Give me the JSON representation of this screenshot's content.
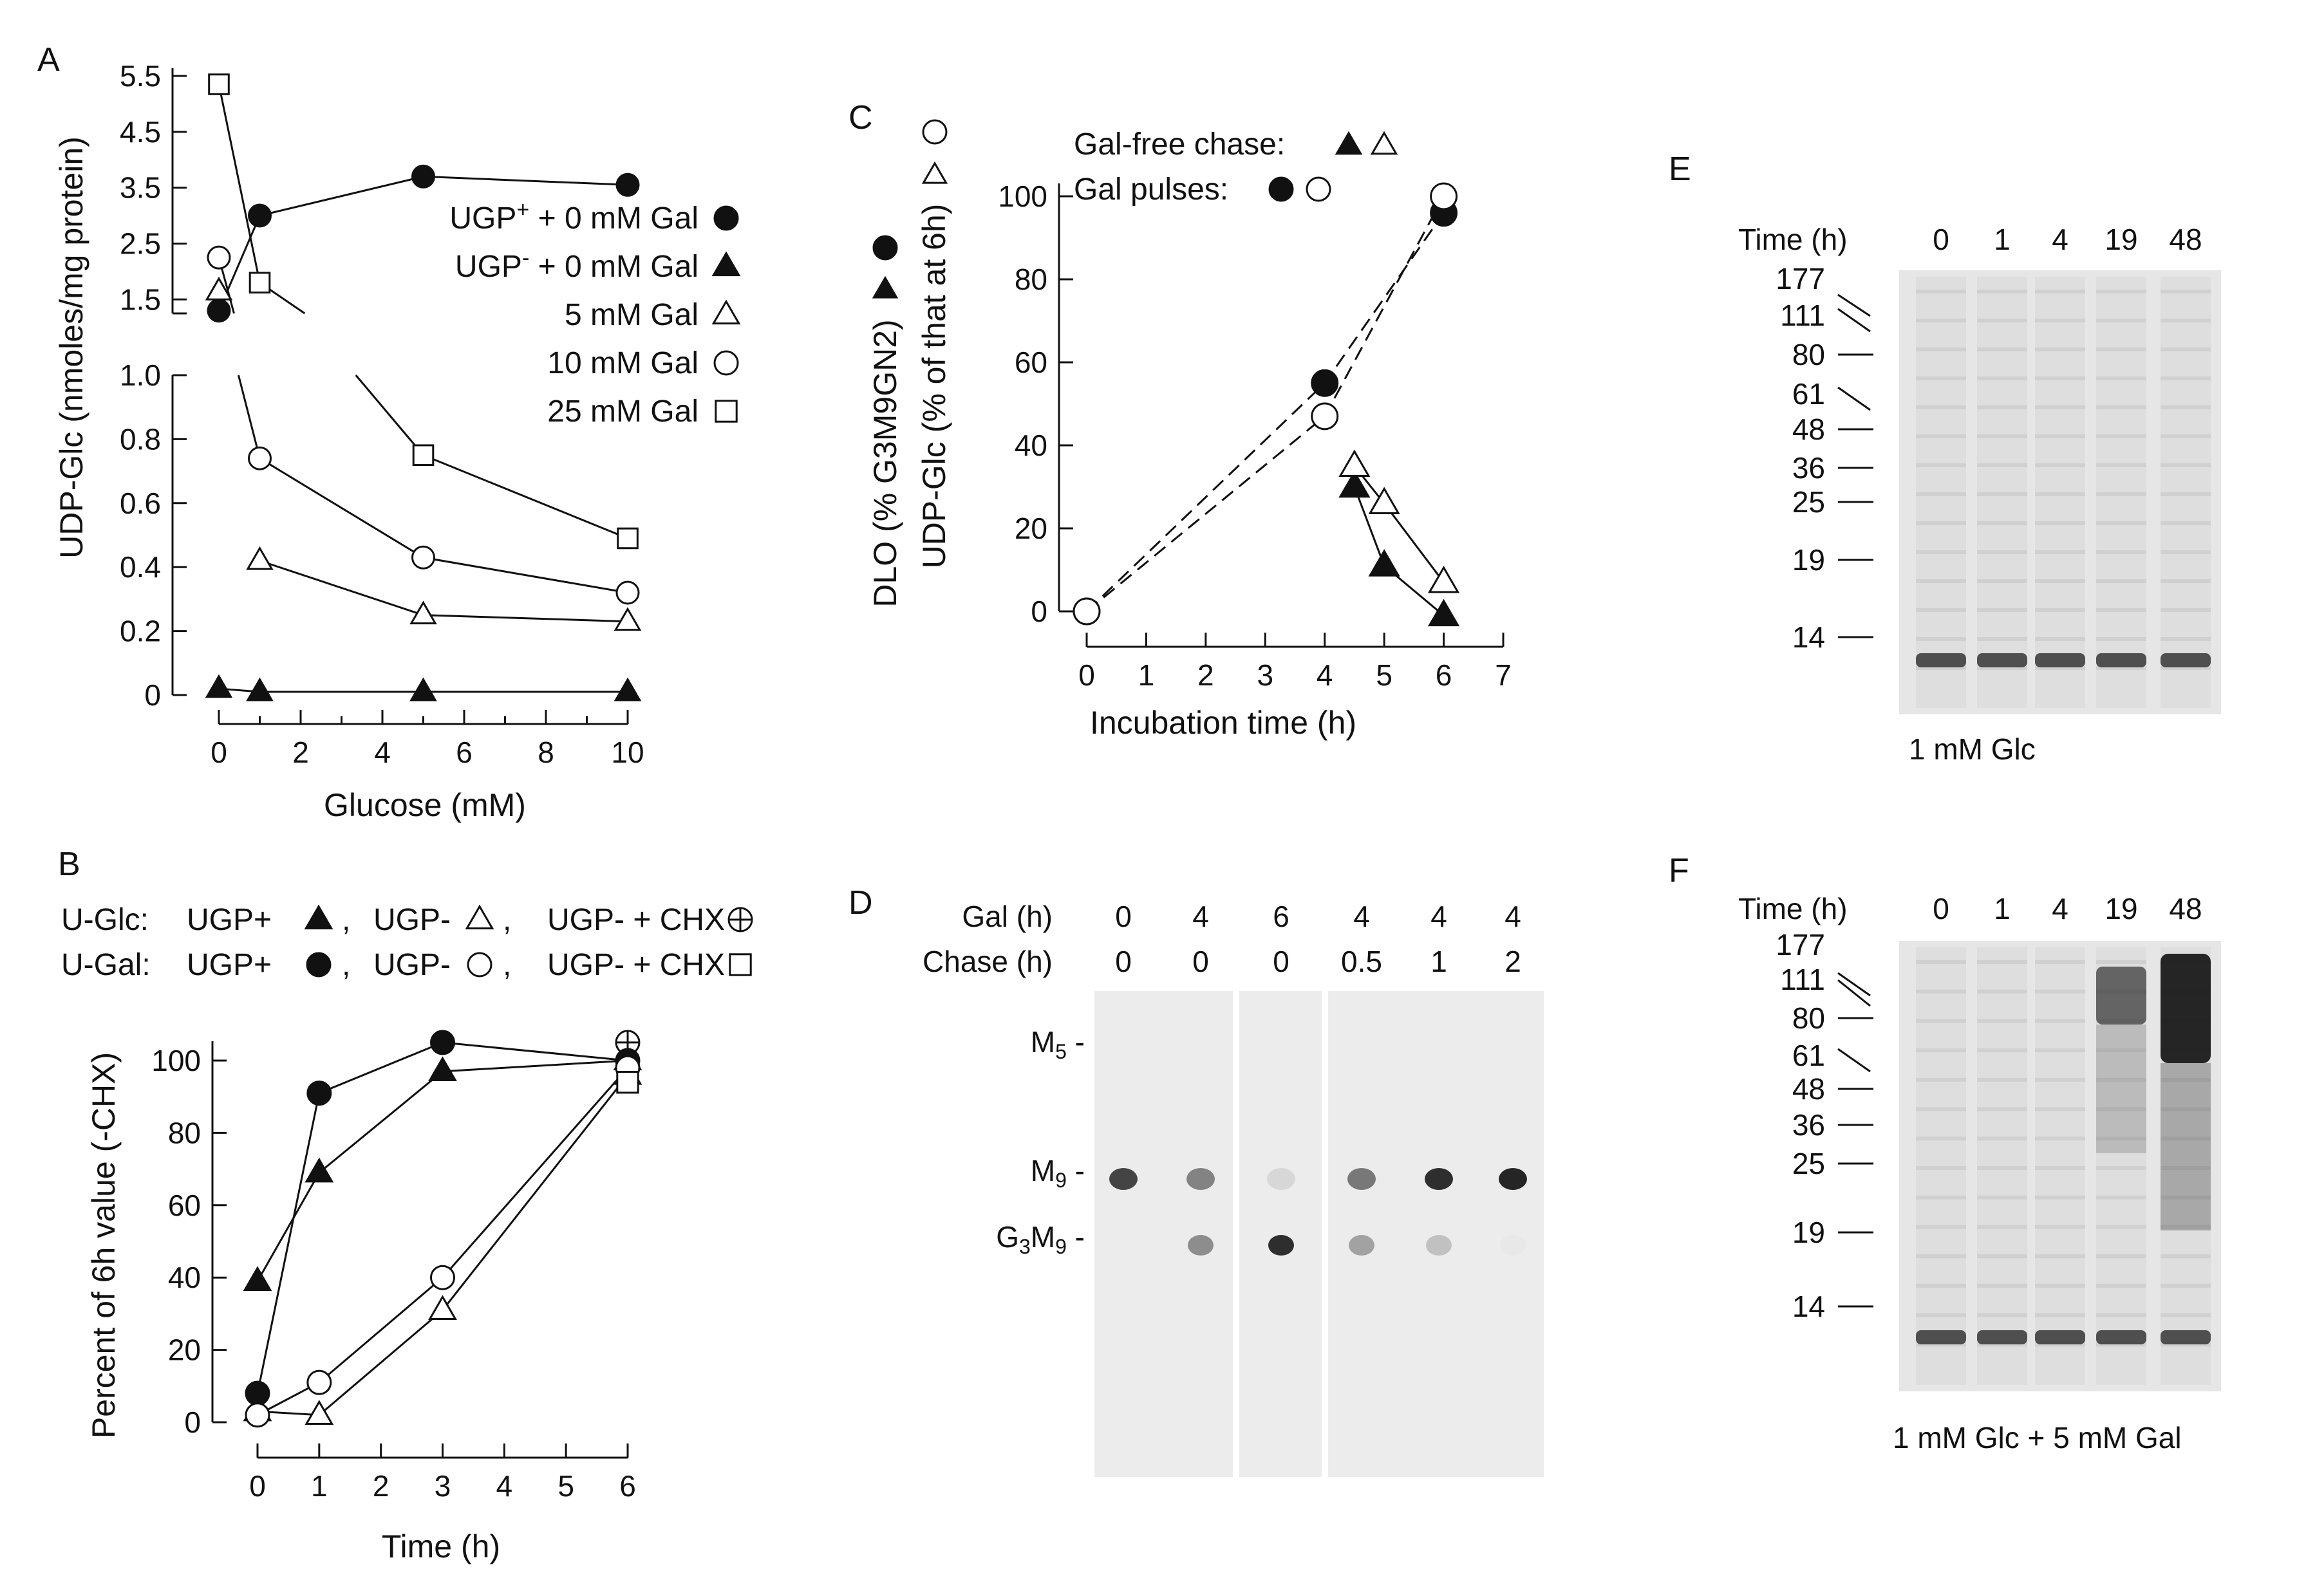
{
  "panels": {
    "A": {
      "letter": "A",
      "chart_data": {
        "type": "line",
        "title": "",
        "xlabel": "Glucose (mM)",
        "ylabel": "UDP-Glc (nmoles/mg protein)",
        "xlim": [
          0,
          10
        ],
        "ylim_lower": [
          0,
          1.0
        ],
        "ylim_upper": [
          1.25,
          5.5
        ],
        "x_ticks": [
          "0",
          "2",
          "4",
          "6",
          "8",
          "10"
        ],
        "y_ticks_lower": [
          "0",
          "0.2",
          "0.4",
          "0.6",
          "0.8",
          "1.0"
        ],
        "y_ticks_upper": [
          "1.5",
          "2.5",
          "3.5",
          "4.5",
          "5.5"
        ],
        "grid": false,
        "legend_position": "right",
        "series": [
          {
            "name": "UGP+ + 0 mM Gal",
            "label_main": "UGP",
            "label_sup": "+",
            "label_rest": " + 0 mM Gal",
            "marker": "filled-circle",
            "x": [
              0,
              1,
              5,
              10
            ],
            "y": [
              1.3,
              3.0,
              3.7,
              3.55
            ]
          },
          {
            "name": "UGP- + 0 mM Gal",
            "label_main": "UGP",
            "label_sup": "-",
            "label_rest": "  + 0 mM Gal",
            "marker": "filled-triangle",
            "x": [
              0,
              1,
              5,
              10
            ],
            "y": [
              0.02,
              0.01,
              0.01,
              0.01
            ]
          },
          {
            "name": "5 mM Gal",
            "label_main": "5 mM Gal",
            "label_sup": "",
            "label_rest": "",
            "marker": "open-triangle",
            "x": [
              0,
              1,
              5,
              10
            ],
            "y": [
              1.65,
              0.42,
              0.25,
              0.23
            ]
          },
          {
            "name": "10 mM Gal",
            "label_main": "10 mM Gal",
            "label_sup": "",
            "label_rest": "",
            "marker": "open-circle",
            "x": [
              0,
              1,
              5,
              10
            ],
            "y": [
              2.25,
              0.74,
              0.43,
              0.32
            ]
          },
          {
            "name": "25 mM Gal",
            "label_main": "25 mM Gal",
            "label_sup": "",
            "label_rest": "",
            "marker": "open-square",
            "x": [
              0,
              1,
              5,
              10
            ],
            "y": [
              5.35,
              1.8,
              0.75,
              0.49
            ]
          }
        ]
      }
    },
    "B": {
      "letter": "B",
      "legend_line1": {
        "prefix": "U-Glc: ",
        "items": [
          "UGP+",
          "UGP-",
          "UGP- + CHX"
        ]
      },
      "legend_line2": {
        "prefix": "U-Gal: ",
        "items": [
          "UGP+",
          "UGP-",
          "UGP- + CHX"
        ]
      },
      "chart_data": {
        "type": "line",
        "title": "",
        "xlabel": "Time (h)",
        "ylabel": "Percent of 6h value (-CHX)",
        "xlim": [
          0,
          6
        ],
        "ylim": [
          0,
          100
        ],
        "x_ticks": [
          "0",
          "1",
          "2",
          "3",
          "4",
          "5",
          "6"
        ],
        "y_ticks": [
          "0",
          "20",
          "40",
          "60",
          "80",
          "100"
        ],
        "grid": false,
        "series": [
          {
            "name": "U-Glc: UGP+",
            "marker": "filled-triangle",
            "x": [
              0,
              1,
              3,
              6
            ],
            "y": [
              39,
              69,
              97,
              100
            ]
          },
          {
            "name": "U-Glc: UGP-",
            "marker": "open-triangle",
            "x": [
              0,
              1,
              3,
              6
            ],
            "y": [
              3,
              2,
              31,
              96
            ]
          },
          {
            "name": "U-Glc: UGP- + CHX",
            "marker": "circle-plus",
            "x": [
              6
            ],
            "y": [
              105
            ]
          },
          {
            "name": "U-Gal: UGP+",
            "marker": "filled-circle",
            "x": [
              0,
              1,
              3,
              6
            ],
            "y": [
              8,
              91,
              105,
              100
            ]
          },
          {
            "name": "U-Gal: UGP-",
            "marker": "open-circle",
            "x": [
              0,
              1,
              3,
              6
            ],
            "y": [
              2,
              11,
              40,
              98
            ]
          },
          {
            "name": "U-Gal: UGP- + CHX",
            "marker": "open-square",
            "x": [
              6
            ],
            "y": [
              94
            ]
          }
        ]
      }
    },
    "C": {
      "letter": "C",
      "legend_line1": "Gal-free chase:",
      "legend_line2": "Gal pulses:",
      "chart_data": {
        "type": "line",
        "title": "",
        "xlabel": "Incubation time (h)",
        "ylabel_1": "DLO (% G3M9GN2)",
        "ylabel_2": "UDP-Glc (% of that at 6h)",
        "xlim": [
          0,
          7
        ],
        "ylim": [
          0,
          100
        ],
        "x_ticks": [
          "0",
          "1",
          "2",
          "3",
          "4",
          "5",
          "6",
          "7"
        ],
        "y_ticks": [
          "0",
          "20",
          "40",
          "60",
          "80",
          "100"
        ],
        "grid": false,
        "series": [
          {
            "name": "Gal-free chase: DLO",
            "marker": "filled-triangle",
            "style": "solid",
            "x": [
              4.5,
              5,
              6
            ],
            "y": [
              30,
              11,
              -1
            ]
          },
          {
            "name": "Gal-free chase: UDP-Glc",
            "marker": "open-triangle",
            "style": "solid",
            "x": [
              4.5,
              5,
              6
            ],
            "y": [
              35,
              26,
              7
            ]
          },
          {
            "name": "Gal pulses: DLO",
            "marker": "filled-circle",
            "style": "dashed",
            "x": [
              0,
              4,
              6
            ],
            "y": [
              0,
              55,
              96
            ]
          },
          {
            "name": "Gal pulses: UDP-Glc",
            "marker": "open-circle",
            "style": "dashed",
            "x": [
              0,
              4,
              6
            ],
            "y": [
              0,
              47,
              100
            ]
          }
        ]
      }
    },
    "D": {
      "letter": "D",
      "row1_label": "Gal (h)",
      "row2_label": "Chase (h)",
      "gal_values": [
        "0",
        "4",
        "6",
        "4",
        "4",
        "4"
      ],
      "chase_values": [
        "0",
        "0",
        "0",
        "0.5",
        "1",
        "2"
      ],
      "band_labels": {
        "m5": "M",
        "m5_sub": "5",
        "m9": "M",
        "m9_sub": "9",
        "g3m9_g": "G",
        "g3m9_sub1": "3",
        "g3m9_m": "M",
        "g3m9_sub2": "9"
      },
      "bands": {
        "m9_intensity": [
          0.8,
          0.5,
          0.1,
          0.55,
          0.9,
          0.95
        ],
        "g3m9_intensity": [
          0.0,
          0.45,
          0.9,
          0.35,
          0.2,
          0.02
        ]
      }
    },
    "E": {
      "letter": "E",
      "time_label": "Time (h)",
      "times": [
        "0",
        "1",
        "4",
        "19",
        "48"
      ],
      "markers": [
        "177",
        "111",
        "80",
        "61",
        "48",
        "36",
        "25",
        "19",
        "14"
      ],
      "caption": "1 mM Glc"
    },
    "F": {
      "letter": "F",
      "time_label": "Time (h)",
      "times": [
        "0",
        "1",
        "4",
        "19",
        "48"
      ],
      "markers": [
        "177",
        "111",
        "80",
        "61",
        "48",
        "36",
        "25",
        "19",
        "14"
      ],
      "caption": "1 mM Glc + 5 mM Gal"
    }
  },
  "colors": {
    "ink": "#111111",
    "gel_bg": "#ececec",
    "band": "#1a1a1a"
  }
}
